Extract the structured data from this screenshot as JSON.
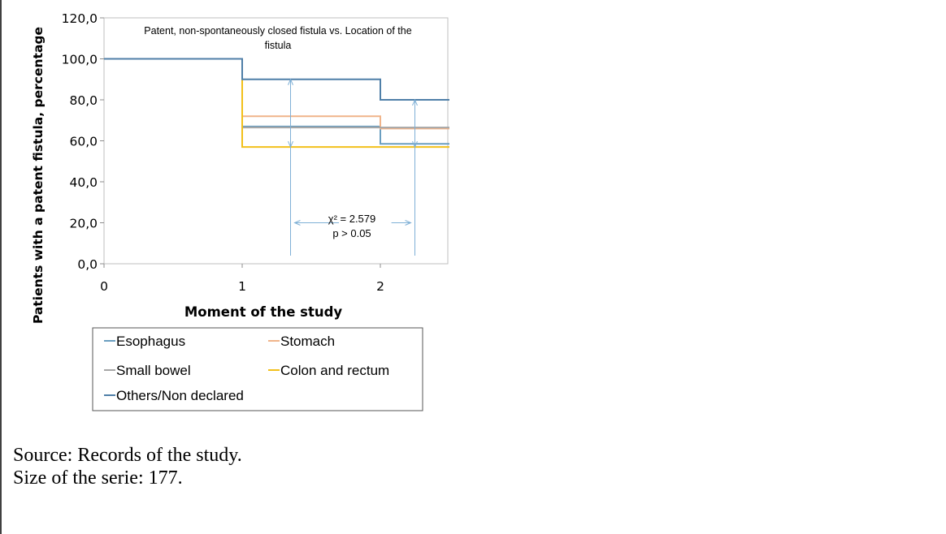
{
  "chart_data": {
    "type": "line",
    "step": true,
    "title": "Patent, non-spontaneously closed fistula vs. Location of the fistula",
    "xlabel": "Moment of the study",
    "ylabel": "Patients with a patent fistula, percentage",
    "ylim": [
      0,
      120
    ],
    "xlim": [
      0,
      2.5
    ],
    "yticks": [
      "0,0",
      "20,0",
      "40,0",
      "60,0",
      "80,0",
      "100,0",
      "120,0"
    ],
    "xticks": [
      "0",
      "1",
      "2"
    ],
    "grid": false,
    "legend_position": "bottom",
    "series": [
      {
        "name": "Esophagus",
        "color": "#6a9ec0",
        "x": [
          0,
          1,
          2
        ],
        "values": [
          100.0,
          67.0,
          58.5
        ]
      },
      {
        "name": "Stomach",
        "color": "#f0b48a",
        "x": [
          0,
          1,
          2
        ],
        "values": [
          100.0,
          72.0,
          66.0
        ]
      },
      {
        "name": "Small bowel",
        "color": "#a6a6a6",
        "x": [
          0,
          1,
          2
        ],
        "values": [
          100.0,
          66.5,
          66.5
        ]
      },
      {
        "name": "Colon and rectum",
        "color": "#f2c01b",
        "x": [
          0,
          1,
          2
        ],
        "values": [
          100.0,
          57.0,
          57.0
        ]
      },
      {
        "name": "Others/Non declared",
        "color": "#4f7fa8",
        "x": [
          0,
          1,
          2
        ],
        "values": [
          100.0,
          90.0,
          80.0
        ]
      }
    ],
    "annotations": {
      "stat_line1": "χ² = 2.579",
      "stat_line2": "p > 0.05",
      "arrow_color": "#7fb0d6"
    }
  },
  "captions": {
    "source": "Source: Records of the study.",
    "size": "Size of the serie: 177."
  }
}
